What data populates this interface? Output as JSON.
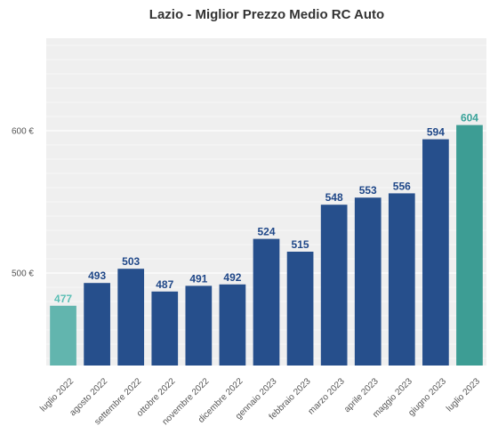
{
  "chart_data": {
    "type": "bar",
    "title": "Lazio - Miglior Prezzo Medio RC Auto",
    "xlabel": "",
    "ylabel": "",
    "categories": [
      "luglio 2022",
      "agosto 2022",
      "settembre 2022",
      "ottobre 2022",
      "novembre 2022",
      "dicembre 2022",
      "gennaio 2023",
      "febbraio 2023",
      "marzo 2023",
      "aprile 2023",
      "maggio 2023",
      "giugno 2023",
      "luglio 2023"
    ],
    "values": [
      477,
      493,
      503,
      487,
      491,
      492,
      524,
      515,
      548,
      553,
      556,
      594,
      604
    ],
    "value_labels": [
      "477",
      "493",
      "503",
      "487",
      "491",
      "492",
      "524",
      "515",
      "548",
      "553",
      "556",
      "594",
      "604"
    ],
    "ylim": [
      435,
      665
    ],
    "yticks": [
      500,
      600
    ],
    "ytick_labels": [
      "500 €",
      "600 €"
    ],
    "grid": true,
    "colors": {
      "default_bar": "#264f8c",
      "first_bar": "#62b5ae",
      "last_bar": "#3d9d94",
      "default_label": "#1f4788",
      "first_label": "#5bbfb5",
      "last_label": "#3aa39a",
      "plot_background": "#efefef",
      "gridline": "#ffffff"
    }
  }
}
